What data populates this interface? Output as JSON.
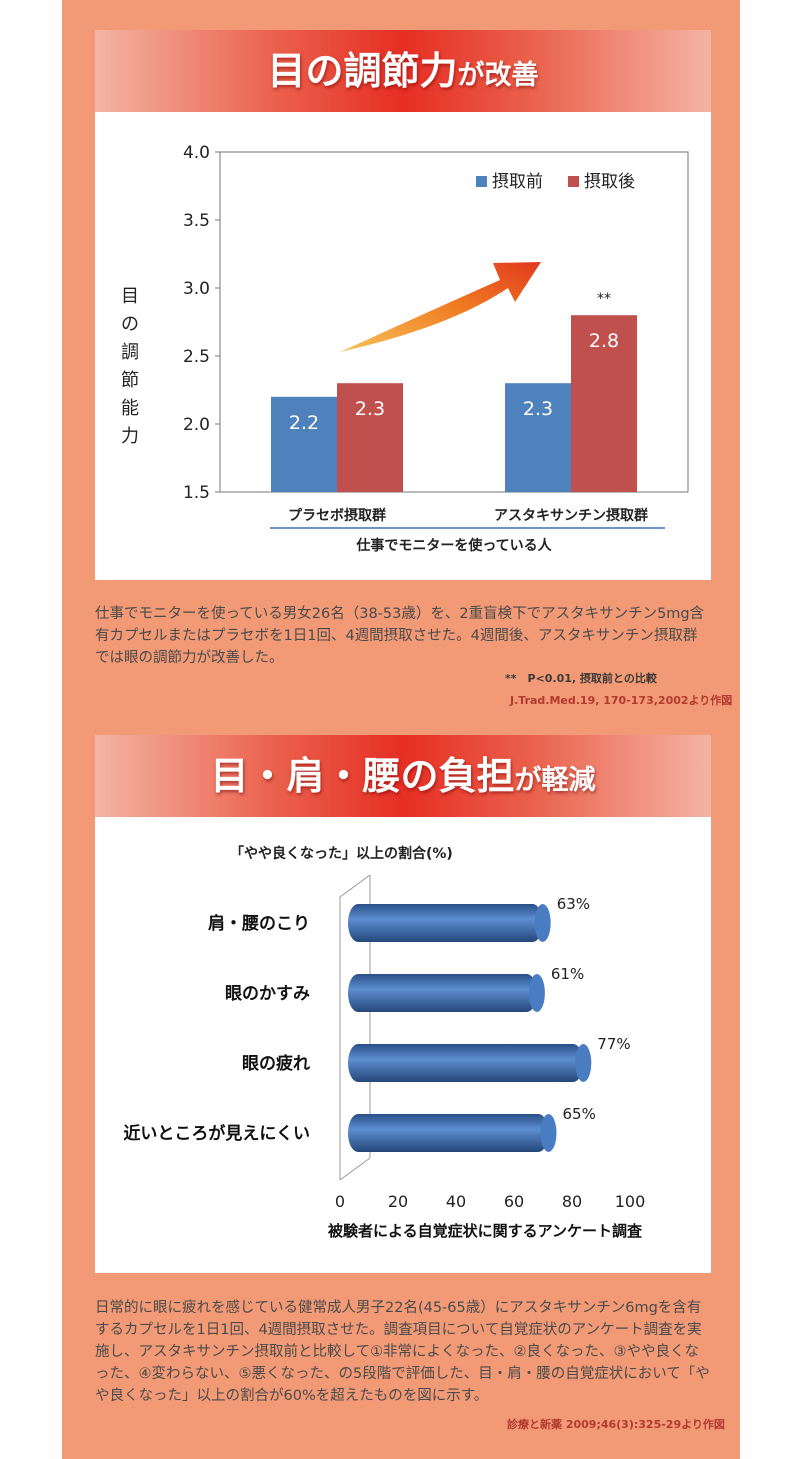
{
  "section1": {
    "title_main": "目の調節力",
    "title_suffix": "が改善",
    "note": "仕事でモニターを使っている男女26名（38-53歳）を、2重盲検下でアスタキサンチン5mg含有カプセルまたはプラセボを1日1回、4週間摂取させた。4週間後、アスタキサンチン摂取群では眼の調節力が改善した。",
    "significance": "**　P<0.01, 摂取前との比較",
    "citation": "J.Trad.Med.19, 170-173,2002より作図"
  },
  "section2": {
    "title_main": "目・肩・腰の負担",
    "title_suffix": "が軽減",
    "note": "日常的に眼に疲れを感じている健常成人男子22名(45-65歳）にアスタキサンチン6mgを含有するカプセルを1日1回、4週間摂取させた。調査項目について自覚症状のアンケート調査を実施し、アスタキサンチン摂取前と比較して①非常によくなった、②良くなった、③やや良くなった、④変わらない、⑤悪くなった、の5段階で評価した、目・肩・腰の自覚症状において「やや良くなった」以上の割合が60%を超えたものを図に示す。",
    "citation": "診療と新薬 2009;46(3):325-29より作図"
  },
  "chart_data": [
    {
      "type": "bar",
      "ylabel": "目の調節能力",
      "xlabel": "仕事でモニターを使っている人",
      "categories": [
        "プラセボ摂取群",
        "アスタキサンチン摂取群"
      ],
      "series": [
        {
          "name": "摂取前",
          "values": [
            2.2,
            2.3
          ],
          "color": "#4f81bd"
        },
        {
          "name": "摂取後",
          "values": [
            2.3,
            2.8
          ],
          "color": "#c0504d"
        }
      ],
      "data_labels": [
        [
          "2.2",
          "2.3"
        ],
        [
          "2.3",
          "2.8"
        ]
      ],
      "ylim": [
        1.5,
        4.0
      ],
      "yticks": [
        "1.5",
        "2.0",
        "2.5",
        "3.0",
        "3.5",
        "4.0"
      ],
      "annotation": "**",
      "legend_position": "top-right",
      "grid": false
    },
    {
      "type": "bar",
      "orientation": "horizontal",
      "title": "「やや良くなった」以上の割合(%)",
      "xlabel": "被験者による自覚症状に関するアンケート調査",
      "categories": [
        "肩・腰のこり",
        "眼のかすみ",
        "眼の疲れ",
        "近いところが見えにくい"
      ],
      "values": [
        63,
        61,
        77,
        65
      ],
      "data_labels": [
        "63%",
        "61%",
        "77%",
        "65%"
      ],
      "xlim": [
        0,
        100
      ],
      "xticks": [
        "0",
        "20",
        "40",
        "60",
        "80",
        "100"
      ],
      "color": "#3d6fb6",
      "grid": false
    }
  ]
}
